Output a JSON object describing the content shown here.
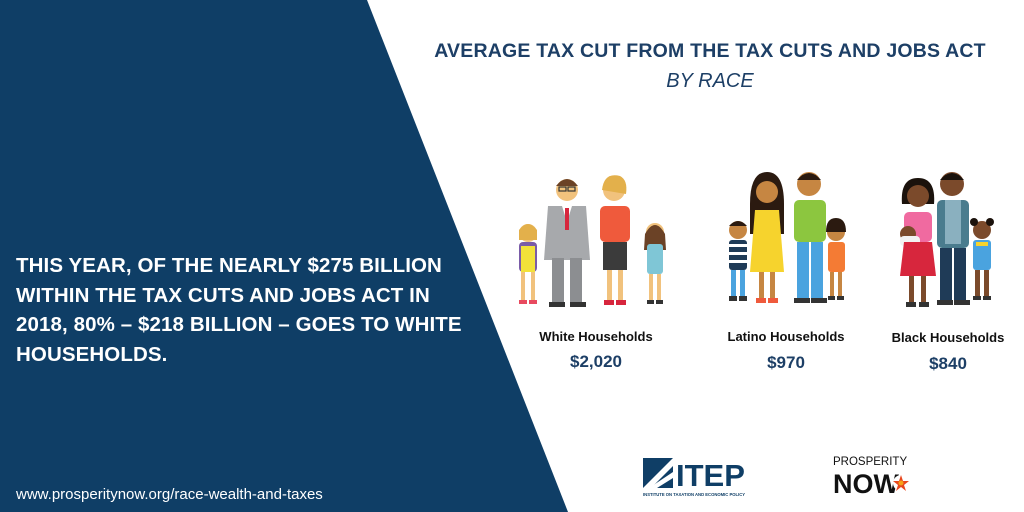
{
  "headline": {
    "title": "AVERAGE TAX CUT FROM THE TAX CUTS AND JOBS ACT",
    "subtitle": "BY RACE"
  },
  "claim": "THIS YEAR, OF THE NEARLY $275 BILLION WITHIN THE TAX CUTS AND JOBS ACT IN 2018, 80% – $218 BILLION – GOES TO WHITE HOUSEHOLDS.",
  "url": "www.prosperitynow.org/race-wealth-and-taxes",
  "groups": [
    {
      "label": "White Households",
      "amount": "$2,020"
    },
    {
      "label": "Latino Households",
      "amount": "$970"
    },
    {
      "label": "Black Households",
      "amount": "$840"
    }
  ],
  "logos": {
    "itep": {
      "name": "ITEP",
      "tagline": "INSTITUTE ON TAXATION AND ECONOMIC POLICY"
    },
    "prosperity_now": {
      "line1": "PROSPERITY",
      "line2": "NOW"
    }
  },
  "colors": {
    "navy": "#0f3e66",
    "title": "#1d3f66",
    "amount": "#1d3f66"
  },
  "icons": [
    "white-family-illustration",
    "latino-family-illustration",
    "black-family-illustration"
  ]
}
